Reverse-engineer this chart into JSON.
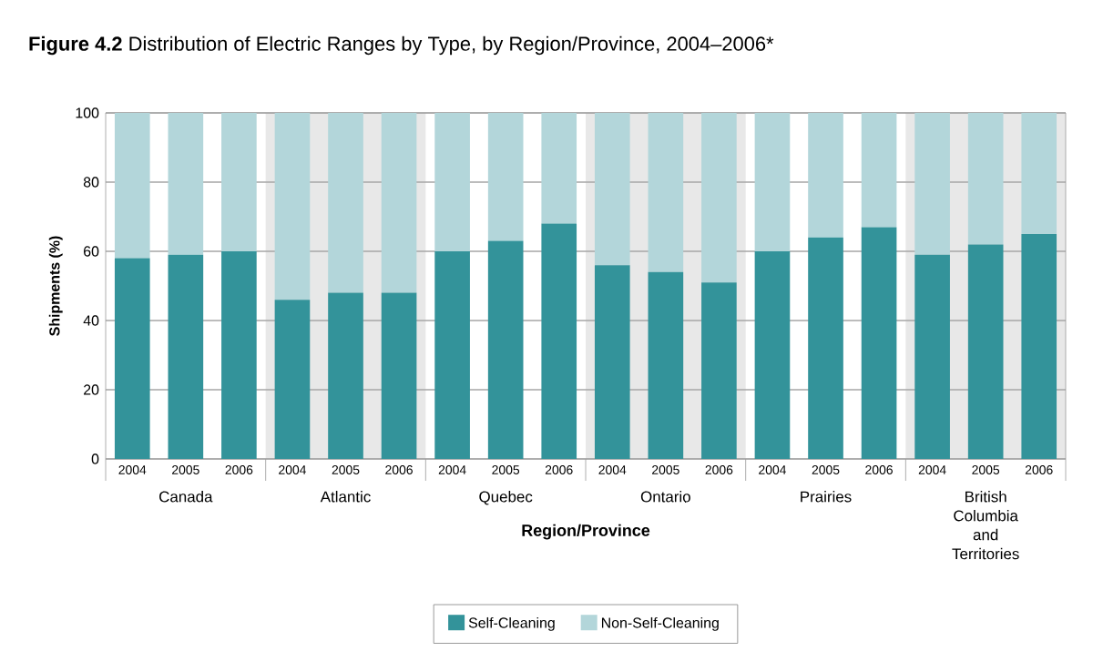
{
  "chart_data": {
    "type": "bar",
    "stacked": true,
    "title": "**Figure 4.2**  Distribution of Electric Ranges by Type, by Region/Province, 2004–2006*",
    "xlabel": "Region/Province",
    "ylabel": "Shipments (%)",
    "categories": [
      "2004",
      "2005",
      "2006",
      "2004",
      "2005",
      "2006",
      "2004",
      "2005",
      "2006",
      "2004",
      "2005",
      "2006",
      "2004",
      "2005",
      "2006",
      "2004",
      "2005",
      "2006"
    ],
    "annotations": [
      "Canada",
      "Atlantic",
      "Quebec",
      "Ontario",
      "Prairies",
      "British Columbia and Territories"
    ],
    "series": [
      {
        "name": "Self-Cleaning",
        "color": "#33939a",
        "values": [
          58,
          59,
          60,
          46,
          48,
          48,
          60,
          63,
          68,
          56,
          54,
          51,
          60,
          64,
          67,
          59,
          62,
          65
        ]
      },
      {
        "name": "Non-Self-Cleaning",
        "color": "#b3d6da",
        "values": [
          42,
          41,
          40,
          54,
          52,
          52,
          40,
          37,
          32,
          44,
          46,
          49,
          40,
          36,
          33,
          41,
          38,
          35
        ]
      }
    ],
    "ylim": [
      0,
      100
    ],
    "yticks": [
      0,
      20,
      40,
      60,
      80,
      100
    ],
    "grid": "y",
    "legend": "bottom"
  }
}
